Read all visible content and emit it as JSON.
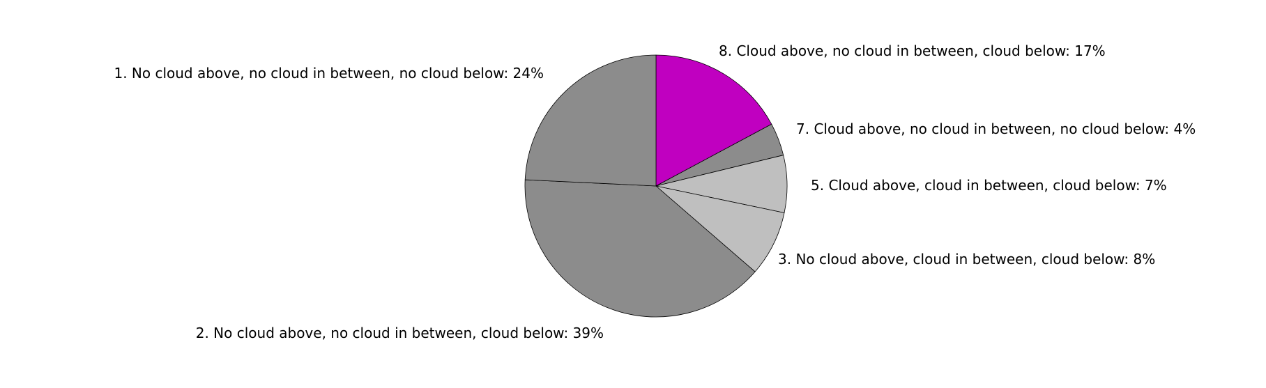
{
  "chart_data": {
    "type": "pie",
    "start_angle": "12 o'clock, clockwise",
    "slices": [
      {
        "id": "slice-8",
        "label": "8. Cloud above, no cloud in between, cloud below: 17%",
        "value": 17,
        "color": "#c000c0"
      },
      {
        "id": "slice-7",
        "label": "7. Cloud above, no cloud in between, no cloud below: 4%",
        "value": 4,
        "color": "#8c8c8c"
      },
      {
        "id": "slice-5",
        "label": "5. Cloud above, cloud in between, cloud below: 7%",
        "value": 7,
        "color": "#bfbfbf"
      },
      {
        "id": "slice-3",
        "label": "3. No cloud above, cloud in between, cloud below: 8%",
        "value": 8,
        "color": "#bfbfbf"
      },
      {
        "id": "slice-2",
        "label": "2. No cloud above, no cloud in between, cloud below: 39%",
        "value": 39,
        "color": "#8c8c8c"
      },
      {
        "id": "slice-1",
        "label": "1. No cloud above, no cloud in between, no cloud below: 24%",
        "value": 24,
        "color": "#8c8c8c"
      }
    ],
    "edge_color": "#000000"
  }
}
